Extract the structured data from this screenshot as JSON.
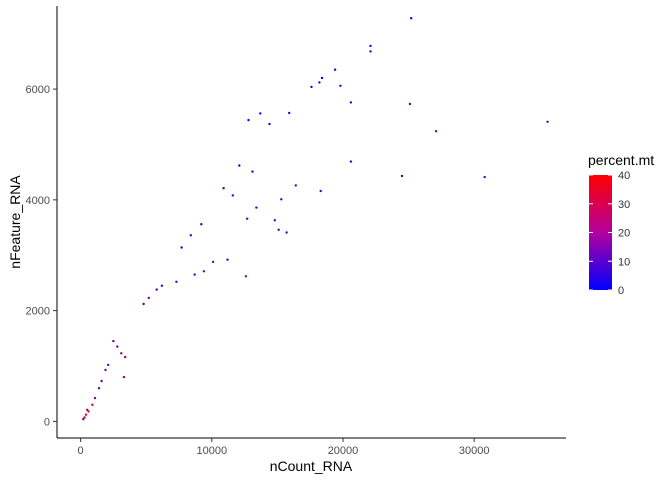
{
  "chart_data": {
    "type": "scatter",
    "title": "",
    "xlabel": "nCount_RNA",
    "ylabel": "nFeature_RNA",
    "xlim": [
      -1800,
      37000
    ],
    "ylim": [
      -300,
      7500
    ],
    "x_ticks": [
      0,
      10000,
      20000,
      30000
    ],
    "x_tick_labels": [
      "0",
      "10000",
      "20000",
      "30000"
    ],
    "y_ticks": [
      0,
      2000,
      4000,
      6000
    ],
    "y_tick_labels": [
      "0",
      "2000",
      "4000",
      "6000"
    ],
    "grid": false,
    "color_variable": "percent.mt",
    "color_scale": {
      "low": "#0000ff",
      "high": "#ff0000",
      "range": [
        0,
        40
      ],
      "ticks": [
        0,
        10,
        20,
        30,
        40
      ],
      "tick_labels": [
        "0",
        "10",
        "20",
        "30",
        "40"
      ]
    },
    "legend_position": "right",
    "points": [
      [
        25200,
        7280,
        1
      ],
      [
        22100,
        6780,
        2
      ],
      [
        22100,
        6680,
        8
      ],
      [
        19400,
        6350,
        3
      ],
      [
        18400,
        6200,
        2
      ],
      [
        18200,
        6120,
        4
      ],
      [
        19800,
        6060,
        5
      ],
      [
        17600,
        6040,
        2
      ],
      [
        20600,
        5760,
        3
      ],
      [
        25100,
        5730,
        12
      ],
      [
        35600,
        5410,
        15
      ],
      [
        13700,
        5560,
        2
      ],
      [
        14400,
        5370,
        3
      ],
      [
        12800,
        5440,
        1
      ],
      [
        15900,
        5570,
        2
      ],
      [
        27100,
        5240,
        18
      ],
      [
        24500,
        4430,
        8
      ],
      [
        30800,
        4410,
        14
      ],
      [
        20600,
        4690,
        12
      ],
      [
        16400,
        4260,
        10
      ],
      [
        18300,
        4160,
        15
      ],
      [
        13100,
        4510,
        8
      ],
      [
        10900,
        4210,
        6
      ],
      [
        12700,
        3660,
        10
      ],
      [
        13400,
        3860,
        12
      ],
      [
        14800,
        3630,
        9
      ],
      [
        15100,
        3460,
        11
      ],
      [
        15700,
        3410,
        13
      ],
      [
        15300,
        4010,
        9
      ],
      [
        11200,
        2920,
        12
      ],
      [
        12600,
        2620,
        18
      ],
      [
        10100,
        2880,
        14
      ],
      [
        9400,
        2710,
        16
      ],
      [
        8700,
        2650,
        12
      ],
      [
        7300,
        2520,
        11
      ],
      [
        5800,
        2380,
        10
      ],
      [
        5200,
        2230,
        16
      ],
      [
        4800,
        2120,
        13
      ],
      [
        3100,
        1230,
        22
      ],
      [
        3400,
        1160,
        20
      ],
      [
        3300,
        800,
        24
      ],
      [
        2800,
        1350,
        18
      ],
      [
        2100,
        1020,
        16
      ],
      [
        1600,
        730,
        14
      ],
      [
        1100,
        420,
        20
      ],
      [
        900,
        300,
        30
      ],
      [
        600,
        180,
        34
      ],
      [
        400,
        120,
        38
      ],
      [
        300,
        70,
        28
      ],
      [
        200,
        40,
        24
      ],
      [
        500,
        210,
        26
      ],
      [
        1400,
        600,
        17
      ],
      [
        1900,
        930,
        15
      ],
      [
        2500,
        1450,
        14
      ],
      [
        7700,
        3140,
        3
      ],
      [
        6200,
        2450,
        9
      ],
      [
        8400,
        3360,
        4
      ],
      [
        9200,
        3560,
        3
      ],
      [
        11600,
        4080,
        5
      ],
      [
        12100,
        4620,
        2
      ]
    ]
  }
}
